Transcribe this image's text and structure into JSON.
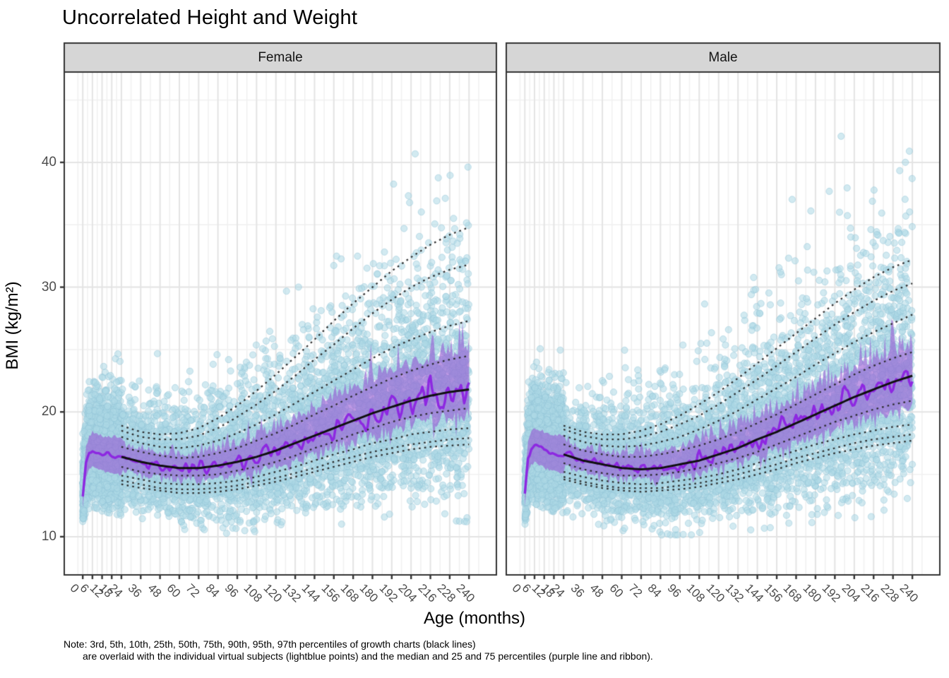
{
  "chart_data": {
    "type": "scatter",
    "title": "Uncorrelated Height and Weight",
    "xlabel": "Age (months)",
    "ylabel": "BMI (kg/m²)",
    "note": {
      "line1": "Note: 3rd, 5th, 10th, 25th, 50th, 75th, 90th, 95th, 97th percentiles of growth charts (black lines)",
      "line2": "are overlaid with the individual virtual subjects (lightblue points) and the median and 25 and 75 percentiles (purple line and ribbon)."
    },
    "grid": true,
    "legend": false,
    "x_ticks": [
      0,
      6,
      12,
      18,
      24,
      36,
      48,
      60,
      72,
      84,
      96,
      108,
      120,
      132,
      144,
      156,
      168,
      180,
      192,
      204,
      216,
      228,
      240
    ],
    "y_ticks": [
      10,
      20,
      30,
      40
    ],
    "xlim": [
      -11.5,
      257
    ],
    "ylim": [
      6.94,
      47.24
    ],
    "percentile_labels": [
      "3rd",
      "5th",
      "10th",
      "25th",
      "50th",
      "75th",
      "90th",
      "95th",
      "97th"
    ],
    "growth_ages": [
      24,
      36,
      48,
      60,
      72,
      84,
      96,
      108,
      120,
      132,
      144,
      156,
      168,
      180,
      192,
      204,
      216,
      228,
      240
    ],
    "infant_ages": [
      0,
      2,
      4,
      6,
      9,
      12,
      18,
      24
    ],
    "facets": [
      {
        "label": "Female",
        "seed": 1013,
        "n_infant": 3000,
        "n_child": 5200,
        "infant_median": [
          13.3,
          15.9,
          16.7,
          16.9,
          16.8,
          16.6,
          16.45,
          16.4
        ],
        "percentiles": {
          "p3": [
            14.2,
            13.9,
            13.7,
            13.5,
            13.5,
            13.6,
            13.8,
            14.1,
            14.4,
            14.8,
            15.2,
            15.6,
            16.0,
            16.4,
            16.7,
            17.0,
            17.2,
            17.3,
            17.4
          ],
          "p5": [
            14.5,
            14.2,
            13.9,
            13.8,
            13.8,
            13.9,
            14.1,
            14.4,
            14.7,
            15.1,
            15.5,
            16.0,
            16.4,
            16.8,
            17.1,
            17.4,
            17.6,
            17.8,
            17.9
          ],
          "p10": [
            14.9,
            14.6,
            14.3,
            14.2,
            14.2,
            14.3,
            14.5,
            14.8,
            15.2,
            15.6,
            16.1,
            16.6,
            17.0,
            17.5,
            17.8,
            18.2,
            18.4,
            18.6,
            18.7
          ],
          "p25": [
            15.6,
            15.2,
            15.0,
            14.9,
            14.9,
            15.0,
            15.3,
            15.6,
            16.0,
            16.5,
            17.1,
            17.6,
            18.2,
            18.7,
            19.2,
            19.6,
            19.9,
            20.1,
            20.3
          ],
          "p50": [
            16.4,
            16.0,
            15.7,
            15.5,
            15.5,
            15.7,
            16.0,
            16.4,
            16.9,
            17.5,
            18.1,
            18.7,
            19.3,
            19.9,
            20.4,
            20.9,
            21.3,
            21.6,
            21.8
          ],
          "p75": [
            17.2,
            16.8,
            16.5,
            16.3,
            16.4,
            16.7,
            17.1,
            17.7,
            18.3,
            19.0,
            19.8,
            20.5,
            21.3,
            22.0,
            22.7,
            23.3,
            23.8,
            24.2,
            24.5
          ],
          "p90": [
            18.0,
            17.5,
            17.2,
            17.1,
            17.3,
            17.7,
            18.3,
            19.0,
            19.8,
            20.7,
            21.6,
            22.5,
            23.4,
            24.3,
            25.1,
            25.8,
            26.4,
            26.9,
            27.3
          ],
          "p95": [
            18.5,
            18.0,
            17.8,
            17.8,
            18.1,
            18.7,
            19.6,
            20.6,
            21.7,
            22.9,
            24.2,
            25.4,
            26.7,
            27.9,
            29.0,
            30.0,
            30.8,
            31.4,
            31.8
          ],
          "p97": [
            18.9,
            18.4,
            18.2,
            18.3,
            18.7,
            19.5,
            20.5,
            21.7,
            23.0,
            24.4,
            25.8,
            27.3,
            28.7,
            30.0,
            31.3,
            32.4,
            33.4,
            34.2,
            34.8
          ]
        }
      },
      {
        "label": "Male",
        "seed": 2027,
        "n_infant": 3000,
        "n_child": 5200,
        "infant_median": [
          13.4,
          16.3,
          17.1,
          17.3,
          17.1,
          16.9,
          16.65,
          16.6
        ],
        "percentiles": {
          "p3": [
            14.6,
            14.2,
            13.9,
            13.7,
            13.6,
            13.7,
            13.8,
            14.0,
            14.3,
            14.6,
            15.0,
            15.4,
            15.9,
            16.3,
            16.7,
            17.0,
            17.3,
            17.5,
            17.7
          ],
          "p5": [
            14.8,
            14.4,
            14.1,
            13.9,
            13.9,
            13.9,
            14.1,
            14.3,
            14.6,
            15.0,
            15.4,
            15.8,
            16.3,
            16.7,
            17.1,
            17.5,
            17.8,
            18.0,
            18.2
          ],
          "p10": [
            15.2,
            14.8,
            14.5,
            14.3,
            14.2,
            14.3,
            14.5,
            14.7,
            15.0,
            15.4,
            15.9,
            16.4,
            16.9,
            17.4,
            17.8,
            18.2,
            18.5,
            18.8,
            19.0
          ],
          "p25": [
            15.9,
            15.4,
            15.1,
            14.9,
            14.9,
            15.0,
            15.2,
            15.5,
            15.9,
            16.3,
            16.8,
            17.4,
            18.0,
            18.6,
            19.2,
            19.7,
            20.2,
            20.6,
            20.9
          ],
          "p50": [
            16.6,
            16.1,
            15.8,
            15.5,
            15.4,
            15.5,
            15.8,
            16.1,
            16.6,
            17.1,
            17.8,
            18.4,
            19.1,
            19.8,
            20.5,
            21.2,
            21.8,
            22.4,
            22.9
          ],
          "p75": [
            17.4,
            16.9,
            16.6,
            16.4,
            16.4,
            16.6,
            16.9,
            17.3,
            17.8,
            18.4,
            19.1,
            19.8,
            20.6,
            21.4,
            22.2,
            23.0,
            23.7,
            24.3,
            24.8
          ],
          "p90": [
            18.1,
            17.6,
            17.3,
            17.2,
            17.3,
            17.6,
            18.0,
            18.6,
            19.3,
            20.1,
            21.0,
            21.9,
            22.8,
            23.8,
            24.7,
            25.6,
            26.4,
            27.1,
            27.8
          ],
          "p95": [
            18.6,
            18.1,
            17.8,
            17.8,
            18.0,
            18.4,
            19.0,
            19.7,
            20.6,
            21.6,
            22.6,
            23.7,
            24.8,
            25.9,
            27.0,
            28.0,
            28.9,
            29.7,
            30.3
          ],
          "p97": [
            18.9,
            18.4,
            18.2,
            18.2,
            18.5,
            19.0,
            19.7,
            20.6,
            21.6,
            22.7,
            23.9,
            25.1,
            26.3,
            27.5,
            28.7,
            29.8,
            30.8,
            31.6,
            32.2
          ]
        }
      }
    ],
    "colors": {
      "point": "rgba(173,216,230,0.55)",
      "point_edge": "rgba(141,194,212,0.45)",
      "ribbon": "rgba(150,86,211,0.60)",
      "median_line": "rgba(140,35,225,0.95)",
      "solid_p50": "#101010",
      "dotted": "rgba(40,40,40,0.95)",
      "grid_major": "#e4e4e4",
      "grid_minor": "#f0f0f0",
      "panel_bg": "#ffffff",
      "panel_border": "#333333",
      "strip_bg": "#d6d6d6",
      "tick_mark": "#333333"
    },
    "style": {
      "point_radius": 4.6
    }
  }
}
